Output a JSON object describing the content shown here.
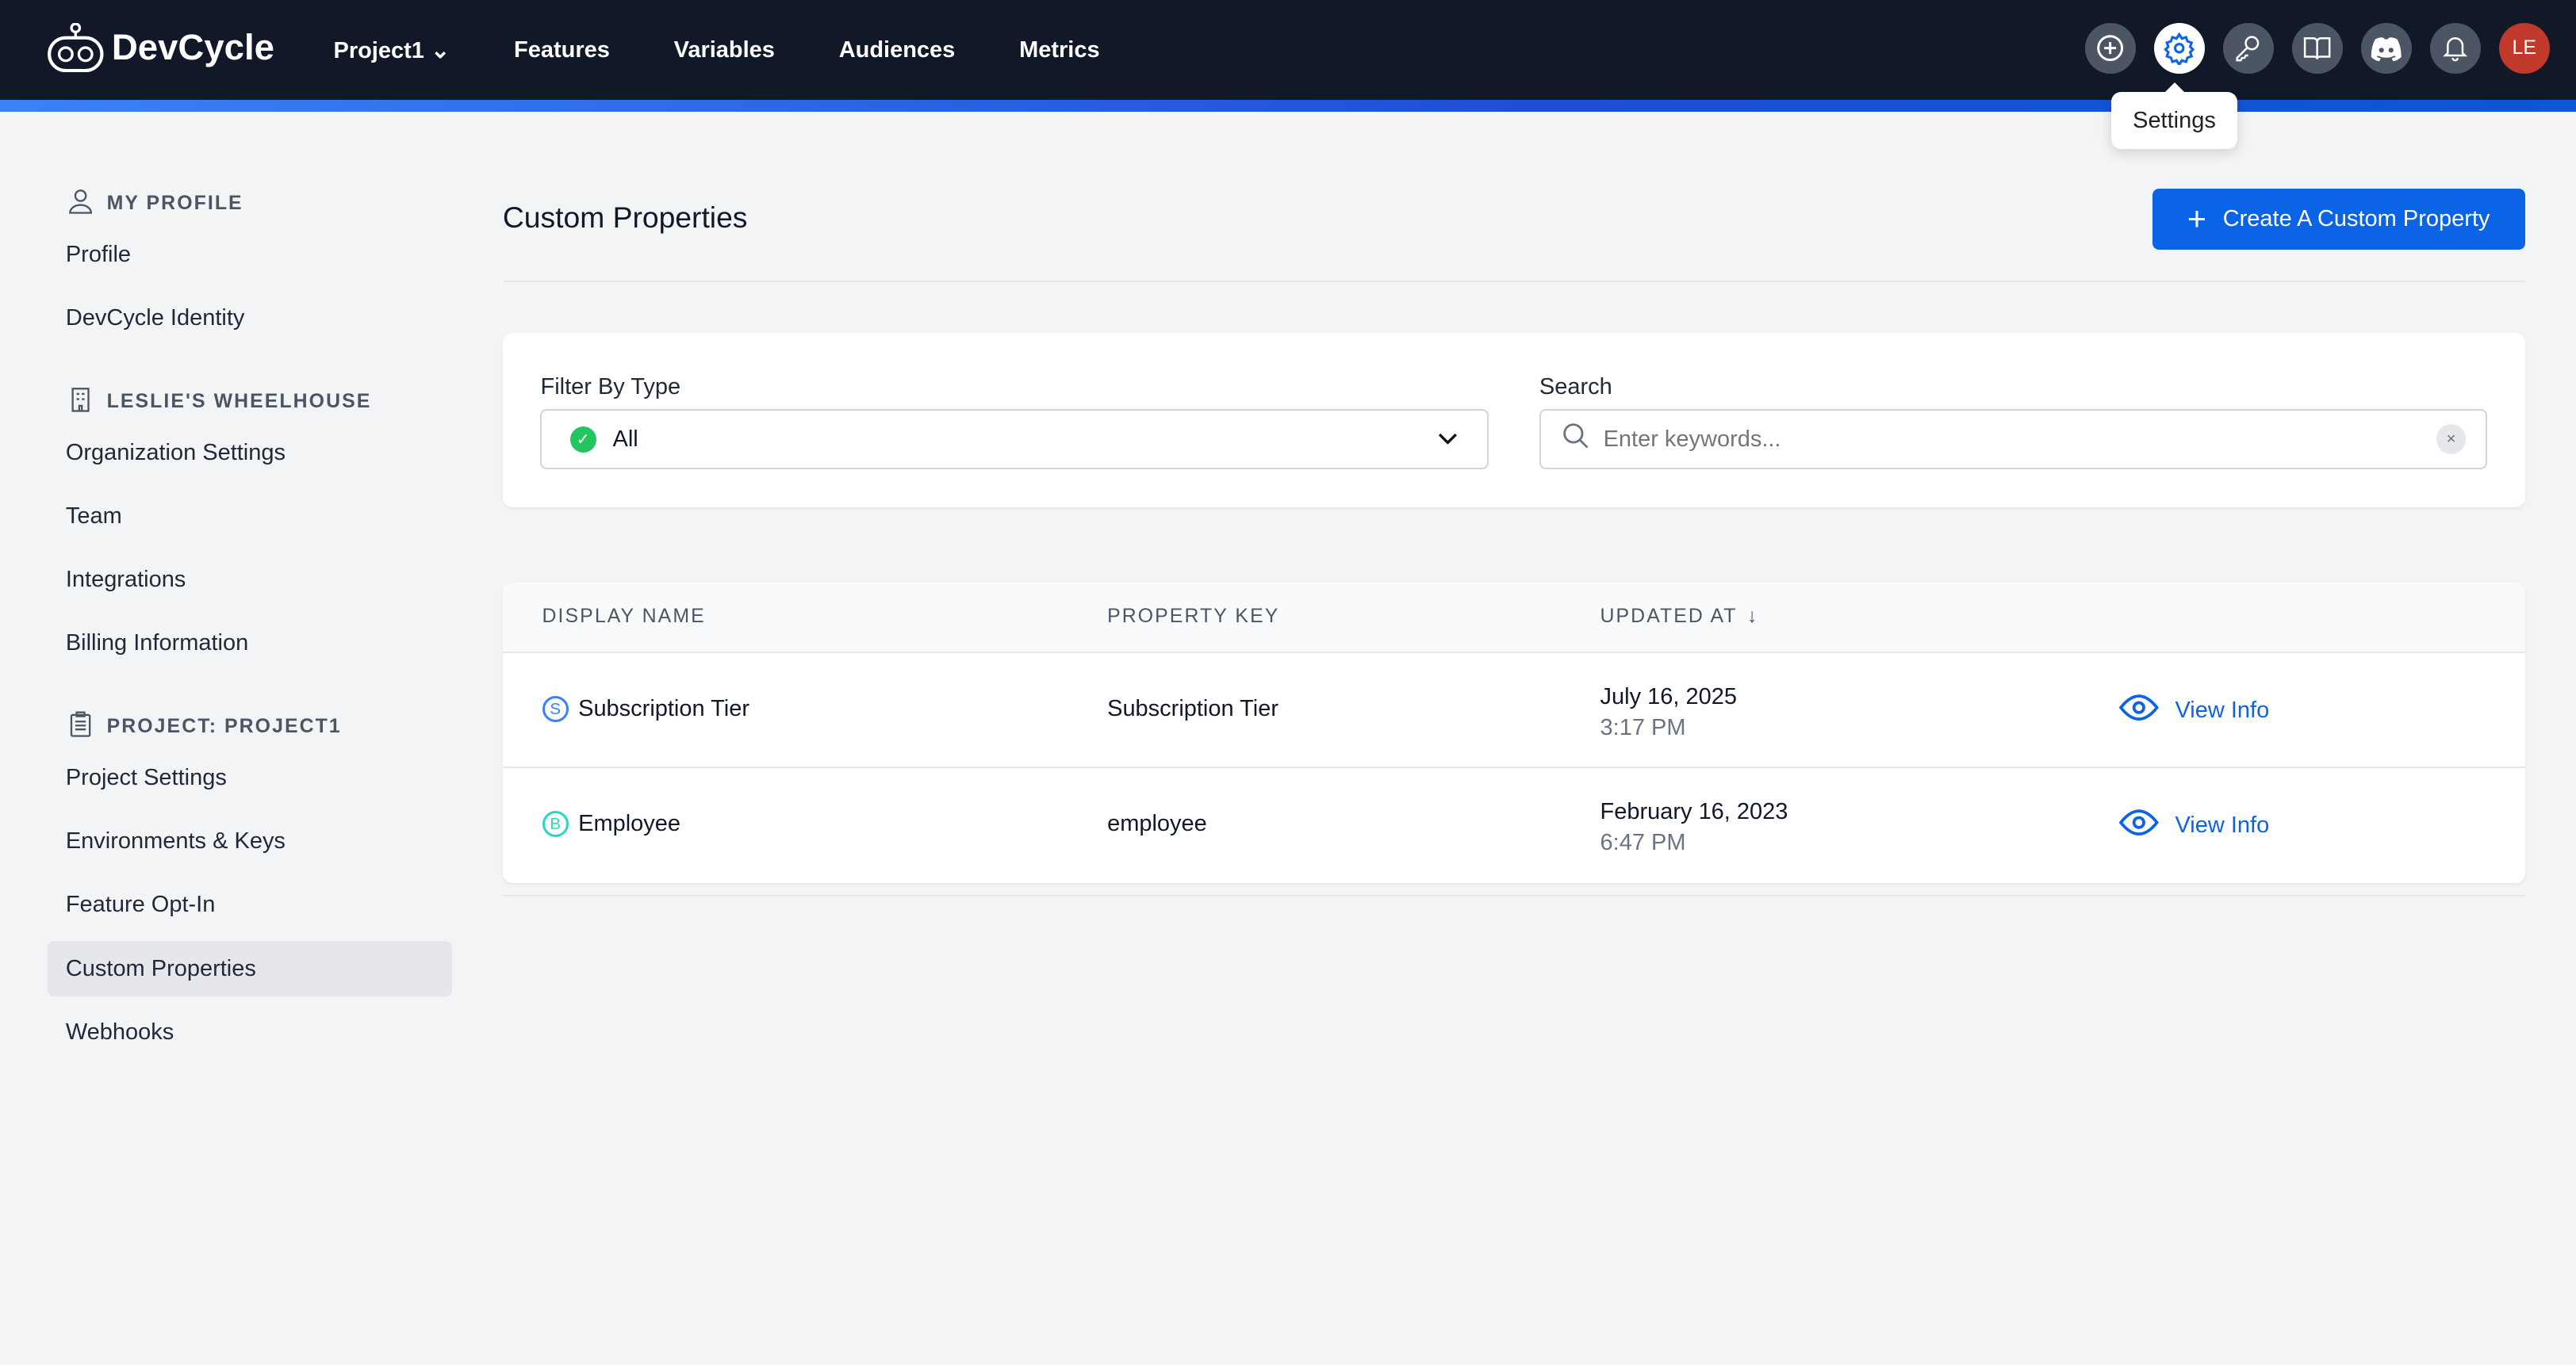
{
  "header": {
    "brand": "DevCycle",
    "project": "Project1",
    "nav": [
      "Features",
      "Variables",
      "Audiences",
      "Metrics"
    ],
    "icons": [
      "plus-circle-icon",
      "gear-icon",
      "key-icon",
      "book-icon",
      "discord-icon",
      "bell-icon"
    ],
    "avatar": "LE",
    "tooltip": "Settings"
  },
  "sidebar": {
    "sections": [
      {
        "title": "MY PROFILE",
        "icon": "user-icon",
        "items": [
          "Profile",
          "DevCycle Identity"
        ]
      },
      {
        "title": "LESLIE'S WHEELHOUSE",
        "icon": "building-icon",
        "items": [
          "Organization Settings",
          "Team",
          "Integrations",
          "Billing Information"
        ]
      },
      {
        "title": "PROJECT: PROJECT1",
        "icon": "clipboard-icon",
        "items": [
          "Project Settings",
          "Environments & Keys",
          "Feature Opt-In",
          "Custom Properties",
          "Webhooks"
        ]
      }
    ],
    "active": "Custom Properties"
  },
  "page": {
    "title": "Custom Properties",
    "create_label": "Create A Custom Property"
  },
  "filter": {
    "label": "Filter By Type",
    "value": "All",
    "search_label": "Search",
    "search_placeholder": "Enter keywords..."
  },
  "table": {
    "headers": [
      "DISPLAY NAME",
      "PROPERTY KEY",
      "UPDATED AT"
    ],
    "rows": [
      {
        "type": "S",
        "color": "#3b82f6",
        "name": "Subscription Tier",
        "key": "Subscription Tier",
        "date": "July 16, 2025",
        "time": "3:17 PM",
        "action": "View Info"
      },
      {
        "type": "B",
        "color": "#2dd4bf",
        "name": "Employee",
        "key": "employee",
        "date": "February 16, 2023",
        "time": "6:47 PM",
        "action": "View Info"
      }
    ]
  },
  "colors": {
    "accent": "#0b63e5",
    "header": "#111827"
  }
}
